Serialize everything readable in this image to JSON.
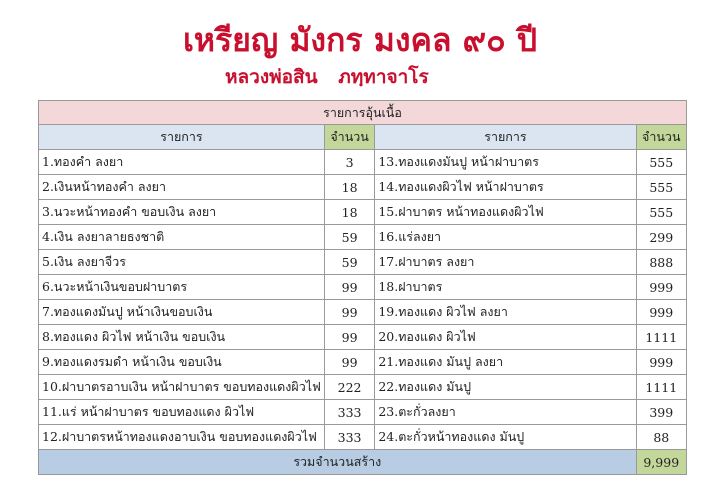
{
  "header": {
    "title": "เหรียญ มังกร มงคล ๙๐ ปี",
    "subtitle": "หลวงพ่อสิน ภทฺทาจาโร"
  },
  "table": {
    "caption": "รายการอุ้นเนื้อ",
    "col_item": "รายการ",
    "col_qty": "จำนวน",
    "left": [
      {
        "item": "1.ทองคำ ลงยา",
        "qty": "3"
      },
      {
        "item": "2.เงินหน้าทองคำ ลงยา",
        "qty": "18"
      },
      {
        "item": "3.นวะหน้าทองคำ ขอบเงิน ลงยา",
        "qty": "18"
      },
      {
        "item": "4.เงิน ลงยาลายธงชาติ",
        "qty": "59"
      },
      {
        "item": "5.เงิน ลงยาจีวร",
        "qty": "59"
      },
      {
        "item": "6.นวะหน้าเงินขอบฝาบาตร",
        "qty": "99"
      },
      {
        "item": "7.ทองแดงมันปู หน้าเงินขอบเงิน",
        "qty": "99"
      },
      {
        "item": "8.ทองแดง ผิวไฟ หน้าเงิน ขอบเงิน",
        "qty": "99"
      },
      {
        "item": "9.ทองแดงรมดำ หน้าเงิน ขอบเงิน",
        "qty": "99"
      },
      {
        "item": "10.ฝาบาตรอาบเงิน หน้าฝาบาตร ขอบทองแดงผิวไฟ",
        "qty": "222"
      },
      {
        "item": "11.แร่ หน้าฝาบาตร ขอบทองแดง ผิวไฟ",
        "qty": "333"
      },
      {
        "item": "12.ฝาบาตรหน้าทองแดงอาบเงิน ขอบทองแดงผิวไฟ",
        "qty": "333"
      }
    ],
    "right": [
      {
        "item": "13.ทองแดงมันปู หน้าฝาบาตร",
        "qty": "555"
      },
      {
        "item": "14.ทองแดงผิวไฟ หน้าฝาบาตร",
        "qty": "555"
      },
      {
        "item": "15.ฝาบาตร หน้าทองแดงผิวไฟ",
        "qty": "555"
      },
      {
        "item": "16.แร่ลงยา",
        "qty": "299"
      },
      {
        "item": "17.ฝาบาตร ลงยา",
        "qty": "888"
      },
      {
        "item": "18.ฝาบาตร",
        "qty": "999"
      },
      {
        "item": "19.ทองแดง ผิวไฟ ลงยา",
        "qty": "999"
      },
      {
        "item": "20.ทองแดง ผิวไฟ",
        "qty": "1111"
      },
      {
        "item": "21.ทองแดง มันปู ลงยา",
        "qty": "999"
      },
      {
        "item": "22.ทองแดง มันปู",
        "qty": "1111"
      },
      {
        "item": "23.ตะกั่วลงยา",
        "qty": "399"
      },
      {
        "item": "24.ตะกั่วหน้าทองแดง มันปู",
        "qty": "88"
      }
    ],
    "total_label": "รวมจำนวนสร้าง",
    "total_value": "9,999"
  }
}
